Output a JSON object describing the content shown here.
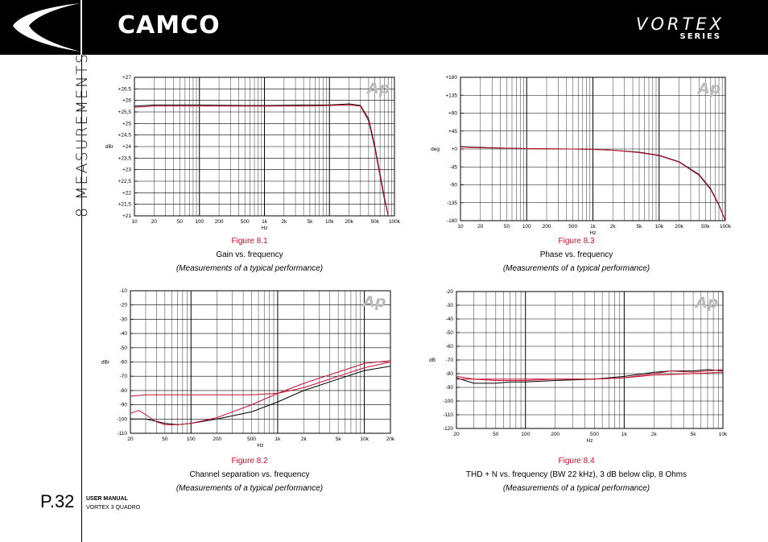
{
  "header": {
    "brand": "CAMCO",
    "series_name": "VORTEX",
    "series_sub": "SERIES"
  },
  "section_title": "8 MEASUREMENTS",
  "page": {
    "number": "P.32",
    "manual_label": "USER MANUAL",
    "manual_model": "VORTEX 3 QUADRO"
  },
  "figures": [
    {
      "number": "Figure 8.1",
      "title": "Gain vs. frequency",
      "note": "(Measurements of a typical performance)"
    },
    {
      "number": "Figure 8.3",
      "title": "Phase vs. frequency",
      "note": "(Measurements of a typical performance)"
    },
    {
      "number": "Figure 8.2",
      "title": "Channel separation vs. frequency",
      "note": "(Measurements of a typical performance)"
    },
    {
      "number": "Figure 8.4",
      "title": "THD + N vs. frequency (BW 22 kHz), 3 dB below clip, 8 Ohms",
      "note": "(Measurements of a typical performance)"
    }
  ],
  "colors": {
    "trace_black": "#000000",
    "trace_red": "#c8102e",
    "caption_red": "#c8102e"
  },
  "chart_data": [
    {
      "type": "line",
      "ylabel": "dBr",
      "xlabel": "Hz",
      "xscale": "log",
      "xlim": [
        10,
        100000
      ],
      "ylim": [
        21,
        27
      ],
      "xticks": [
        [
          10,
          "10"
        ],
        [
          20,
          "20"
        ],
        [
          50,
          "50"
        ],
        [
          100,
          "100"
        ],
        [
          200,
          "200"
        ],
        [
          500,
          "500"
        ],
        [
          1000,
          "1k"
        ],
        [
          2000,
          "2k"
        ],
        [
          5000,
          "5k"
        ],
        [
          10000,
          "10k"
        ],
        [
          20000,
          "20k"
        ],
        [
          50000,
          "50k"
        ],
        [
          100000,
          "100k"
        ]
      ],
      "yticks": [
        [
          27,
          "+27"
        ],
        [
          26.5,
          "+26,5"
        ],
        [
          26,
          "+26"
        ],
        [
          25.5,
          "+25,5"
        ],
        [
          25,
          "+25"
        ],
        [
          24.5,
          "+24,5"
        ],
        [
          24,
          "+24"
        ],
        [
          23.5,
          "+23,5"
        ],
        [
          23,
          "+23"
        ],
        [
          22.5,
          "+22,5"
        ],
        [
          22,
          "+22"
        ],
        [
          21.5,
          "+21,5"
        ],
        [
          21,
          "+21"
        ]
      ],
      "series": [
        {
          "color": "#000000",
          "x": [
            10,
            20,
            50,
            100,
            500,
            1000,
            5000,
            10000,
            20000,
            30000,
            40000,
            50000,
            60000,
            70000,
            80000
          ],
          "y": [
            25.75,
            25.8,
            25.8,
            25.8,
            25.78,
            25.78,
            25.8,
            25.8,
            25.85,
            25.78,
            25.2,
            24.0,
            22.8,
            21.8,
            21.0
          ]
        },
        {
          "color": "#c8102e",
          "x": [
            10,
            20,
            50,
            100,
            500,
            1000,
            5000,
            10000,
            20000,
            30000,
            40000,
            50000,
            60000,
            70000,
            80000
          ],
          "y": [
            25.7,
            25.75,
            25.75,
            25.75,
            25.75,
            25.75,
            25.75,
            25.78,
            25.8,
            25.75,
            25.1,
            23.9,
            22.7,
            21.7,
            21.0
          ]
        }
      ]
    },
    {
      "type": "line",
      "ylabel": "deg",
      "xlabel": "Hz",
      "xscale": "log",
      "xlim": [
        10,
        100000
      ],
      "ylim": [
        -180,
        180
      ],
      "xticks": [
        [
          10,
          "10"
        ],
        [
          20,
          "20"
        ],
        [
          50,
          "50"
        ],
        [
          100,
          "100"
        ],
        [
          200,
          "200"
        ],
        [
          500,
          "500"
        ],
        [
          1000,
          "1k"
        ],
        [
          2000,
          "2k"
        ],
        [
          5000,
          "5k"
        ],
        [
          10000,
          "10k"
        ],
        [
          20000,
          "20k"
        ],
        [
          50000,
          "50k"
        ],
        [
          100000,
          "100k"
        ]
      ],
      "yticks": [
        [
          180,
          "+180"
        ],
        [
          135,
          "+135"
        ],
        [
          90,
          "+90"
        ],
        [
          45,
          "+45"
        ],
        [
          0,
          "+0"
        ],
        [
          -45,
          "-45"
        ],
        [
          -90,
          "-90"
        ],
        [
          -135,
          "-135"
        ],
        [
          -180,
          "-180"
        ]
      ],
      "series": [
        {
          "color": "#000000",
          "x": [
            10,
            20,
            50,
            100,
            500,
            1000,
            2000,
            5000,
            10000,
            20000,
            40000,
            60000,
            80000,
            100000
          ],
          "y": [
            6,
            4,
            2,
            1,
            0,
            -1,
            -3,
            -8,
            -16,
            -32,
            -64,
            -100,
            -140,
            -180
          ]
        },
        {
          "color": "#c8102e",
          "x": [
            10,
            20,
            50,
            100,
            500,
            1000,
            2000,
            5000,
            10000,
            20000,
            40000,
            60000,
            80000,
            100000
          ],
          "y": [
            5,
            3,
            2,
            1,
            0,
            -1,
            -3,
            -9,
            -17,
            -33,
            -66,
            -102,
            -142,
            -180
          ]
        }
      ]
    },
    {
      "type": "line",
      "ylabel": "dBr",
      "xlabel": "Hz",
      "xscale": "log",
      "xlim": [
        20,
        20000
      ],
      "ylim": [
        -110,
        -10
      ],
      "xticks": [
        [
          20,
          "20"
        ],
        [
          50,
          "50"
        ],
        [
          100,
          "100"
        ],
        [
          200,
          "200"
        ],
        [
          500,
          "500"
        ],
        [
          1000,
          "1k"
        ],
        [
          2000,
          "2k"
        ],
        [
          5000,
          "5k"
        ],
        [
          10000,
          "10k"
        ],
        [
          20000,
          "20k"
        ]
      ],
      "yticks": [
        [
          -10,
          "-10"
        ],
        [
          -20,
          "-20"
        ],
        [
          -30,
          "-30"
        ],
        [
          -40,
          "-40"
        ],
        [
          -50,
          "-50"
        ],
        [
          -60,
          "-60"
        ],
        [
          -70,
          "-70"
        ],
        [
          -80,
          "-80"
        ],
        [
          -90,
          "-90"
        ],
        [
          -100,
          "-100"
        ],
        [
          -110,
          "-110"
        ]
      ],
      "series": [
        {
          "color": "#000000",
          "x": [
            20,
            30,
            50,
            70,
            100,
            200,
            500,
            1000,
            2000,
            5000,
            10000,
            20000
          ],
          "y": [
            -100,
            -100,
            -103,
            -104,
            -103,
            -100,
            -95,
            -88,
            -80,
            -72,
            -66,
            -63
          ]
        },
        {
          "color": "#c8102e",
          "x": [
            20,
            25,
            30,
            40,
            50,
            70,
            100,
            200,
            500,
            1000,
            2000,
            5000,
            10000,
            20000
          ],
          "y": [
            -96,
            -94,
            -97,
            -102,
            -104,
            -104,
            -103,
            -99,
            -90,
            -82,
            -75,
            -67,
            -61,
            -59
          ]
        },
        {
          "color": "#c8102e",
          "x": [
            20,
            30,
            50,
            100,
            200,
            500,
            1000,
            2000,
            5000,
            10000,
            20000
          ],
          "y": [
            -84,
            -83,
            -83,
            -83,
            -83,
            -83,
            -82,
            -78,
            -70,
            -64,
            -60
          ]
        }
      ]
    },
    {
      "type": "line",
      "ylabel": "dB",
      "xlabel": "Hz",
      "xscale": "log",
      "xlim": [
        20,
        10000
      ],
      "ylim": [
        -120,
        -20
      ],
      "xticks": [
        [
          20,
          "20"
        ],
        [
          50,
          "50"
        ],
        [
          100,
          "100"
        ],
        [
          200,
          "200"
        ],
        [
          500,
          "500"
        ],
        [
          1000,
          "1k"
        ],
        [
          2000,
          "2k"
        ],
        [
          5000,
          "5k"
        ],
        [
          10000,
          "10k"
        ]
      ],
      "yticks": [
        [
          -20,
          "-20"
        ],
        [
          -30,
          "-30"
        ],
        [
          -40,
          "-40"
        ],
        [
          -50,
          "-50"
        ],
        [
          -60,
          "-60"
        ],
        [
          -70,
          "-70"
        ],
        [
          -80,
          "-80"
        ],
        [
          -90,
          "-90"
        ],
        [
          -100,
          "-100"
        ],
        [
          -110,
          "-110"
        ],
        [
          -120,
          "-120"
        ]
      ],
      "series": [
        {
          "color": "#000000",
          "x": [
            20,
            30,
            50,
            70,
            100,
            200,
            500,
            1000,
            2000,
            3000,
            5000,
            7000,
            10000
          ],
          "y": [
            -83,
            -87,
            -87,
            -86,
            -86,
            -85,
            -84,
            -82,
            -79,
            -78,
            -78,
            -77,
            -78
          ]
        },
        {
          "color": "#c8102e",
          "x": [
            20,
            30,
            50,
            70,
            100,
            200,
            500,
            1000,
            2000,
            3000,
            5000,
            7000,
            10000
          ],
          "y": [
            -82,
            -84,
            -85,
            -85,
            -85,
            -84,
            -84,
            -83,
            -80,
            -78,
            -79,
            -78,
            -77
          ]
        },
        {
          "color": "#c8102e",
          "x": [
            20,
            50,
            100,
            200,
            500,
            1000,
            2000,
            5000,
            10000
          ],
          "y": [
            -84,
            -84,
            -84,
            -84,
            -84,
            -83,
            -81,
            -80,
            -79
          ]
        }
      ]
    }
  ]
}
